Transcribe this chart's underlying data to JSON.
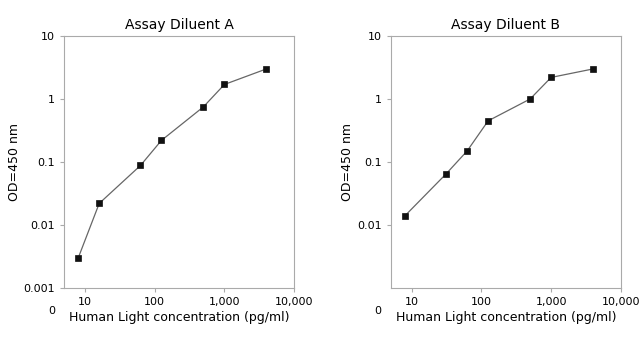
{
  "panel_A": {
    "title": "Assay Diluent A",
    "x": [
      8,
      16,
      62.5,
      125,
      500,
      1000,
      4000
    ],
    "y": [
      0.003,
      0.022,
      0.088,
      0.22,
      0.75,
      1.7,
      3.0
    ],
    "ylabel": "OD=450 nm",
    "xlabel": "Human Light concentration (pg/ml)",
    "xlim": [
      5,
      10000
    ],
    "ylim": [
      0.001,
      10
    ],
    "xticks": [
      10,
      100,
      1000,
      10000
    ],
    "xtick_labels": [
      "10",
      "100",
      "1,000",
      "10,000"
    ],
    "yticks": [
      0.001,
      0.01,
      0.1,
      1,
      10
    ],
    "ytick_labels": [
      "0.001",
      "0.01",
      "0.1",
      "1",
      "10"
    ]
  },
  "panel_B": {
    "title": "Assay Diluent B",
    "x": [
      8,
      31.25,
      62.5,
      125,
      500,
      1000,
      4000
    ],
    "y": [
      0.014,
      0.065,
      0.15,
      0.45,
      1.0,
      2.2,
      3.0
    ],
    "ylabel": "OD=450 nm",
    "xlabel": "Human Light concentration (pg/ml)",
    "xlim": [
      5,
      10000
    ],
    "ylim": [
      0.001,
      10
    ],
    "xticks": [
      10,
      100,
      1000,
      10000
    ],
    "xtick_labels": [
      "10",
      "100",
      "1,000",
      "10,000"
    ],
    "yticks": [
      0.01,
      0.1,
      1,
      10
    ],
    "ytick_labels": [
      "0.01",
      "0.1",
      "1",
      "10"
    ]
  },
  "line_color": "#666666",
  "marker_color": "#111111",
  "marker": "s",
  "marker_size": 4,
  "title_fontsize": 10,
  "label_fontsize": 9,
  "tick_fontsize": 8,
  "background_color": "#ffffff",
  "spine_color": "#aaaaaa"
}
